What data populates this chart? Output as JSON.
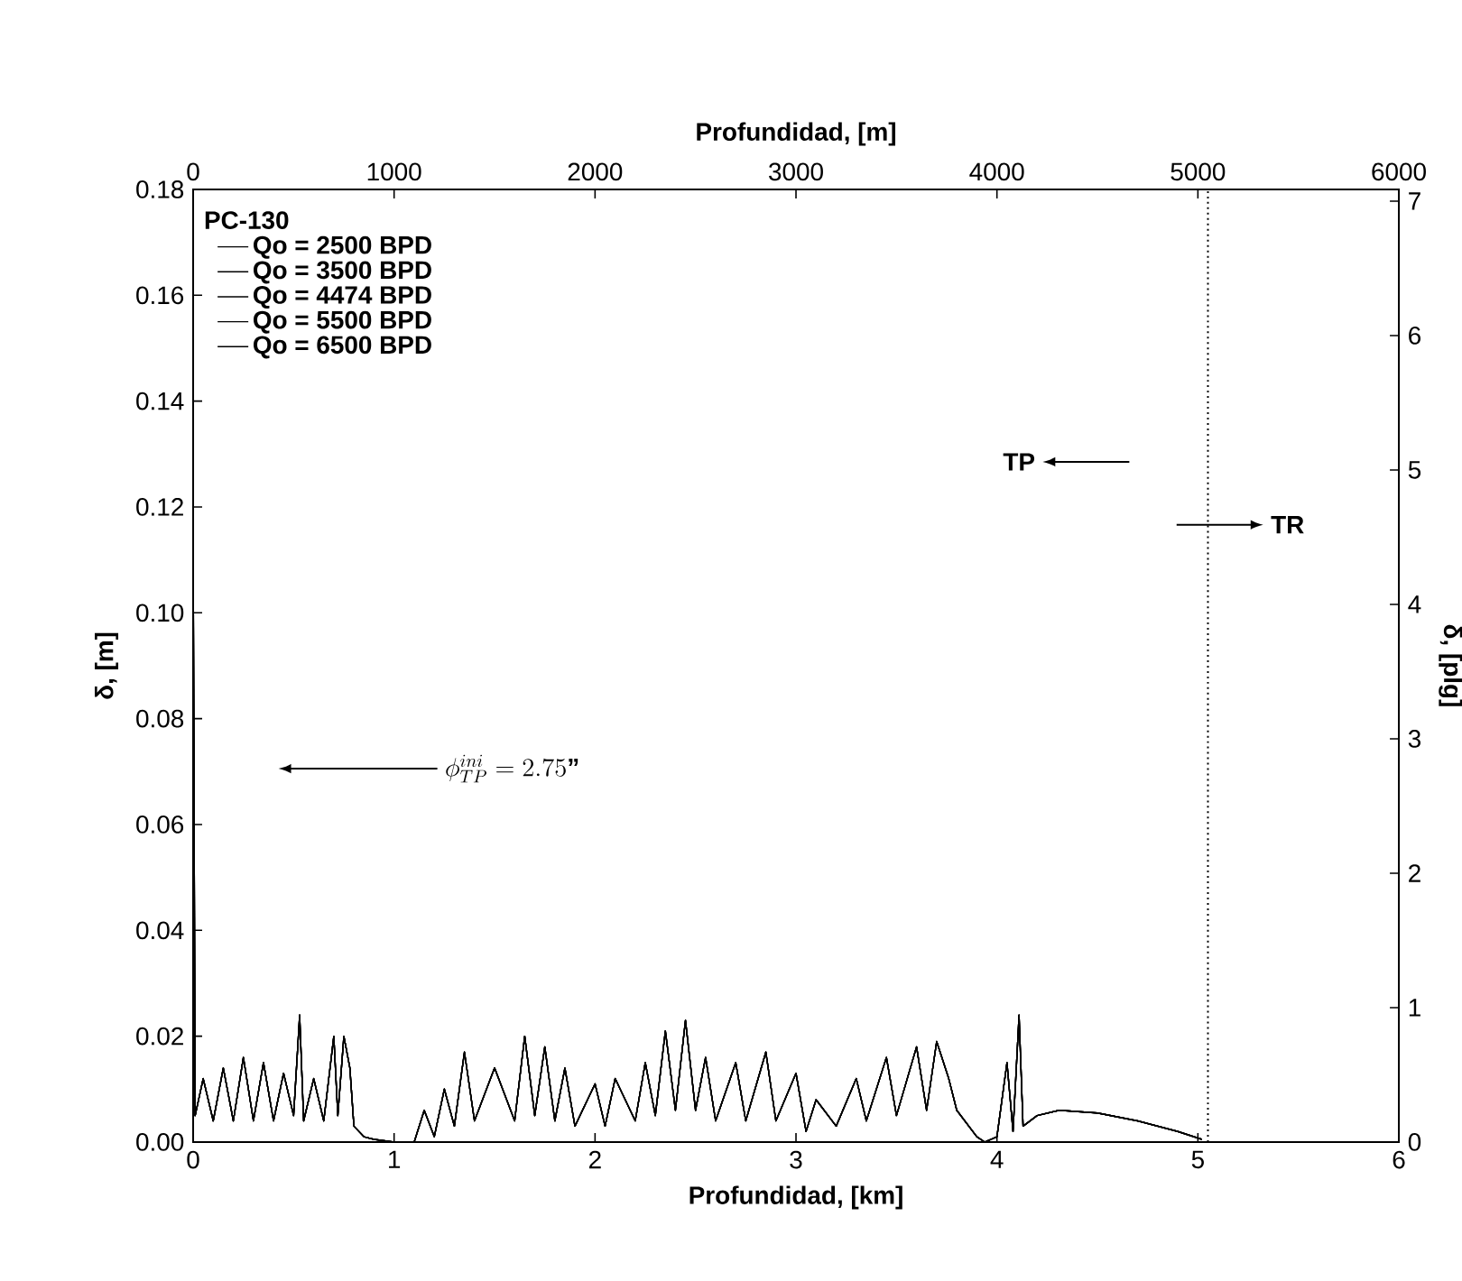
{
  "chart_data": {
    "type": "line",
    "xlabel": "Profundidad, [km]",
    "x2label": "Profundidad, [m]",
    "ylabel": "δ, [m]",
    "y2label": "δ, [plg]",
    "legend_title": "PC-130",
    "legend": "top left",
    "grid": false,
    "xlim": [
      0,
      6
    ],
    "xticks": [
      0,
      1,
      2,
      3,
      4,
      5,
      6
    ],
    "x2lim": [
      0,
      6000
    ],
    "x2ticks": [
      0,
      1000,
      2000,
      3000,
      4000,
      5000,
      6000
    ],
    "ylim": [
      0,
      0.18
    ],
    "yticks": [
      {
        "value": 0,
        "label": "0.00"
      },
      {
        "value": 0.02,
        "label": "0.02"
      },
      {
        "value": 0.04,
        "label": "0.04"
      },
      {
        "value": 0.06,
        "label": "0.06"
      },
      {
        "value": 0.08,
        "label": "0.08"
      },
      {
        "value": 0.1,
        "label": "0.10"
      },
      {
        "value": 0.12,
        "label": "0.12"
      },
      {
        "value": 0.14,
        "label": "0.14"
      },
      {
        "value": 0.16,
        "label": "0.16"
      },
      {
        "value": 0.18,
        "label": "0.18"
      }
    ],
    "y2lim": [
      0,
      7.087
    ],
    "y2ticks": [
      0,
      1,
      2,
      3,
      4,
      5,
      6,
      7
    ],
    "x": [
      0,
      0.01,
      0.05,
      0.1,
      0.15,
      0.2,
      0.25,
      0.3,
      0.35,
      0.4,
      0.45,
      0.5,
      0.53,
      0.55,
      0.6,
      0.65,
      0.7,
      0.72,
      0.75,
      0.78,
      0.8,
      0.85,
      0.9,
      1.0,
      1.1,
      1.15,
      1.2,
      1.25,
      1.3,
      1.35,
      1.4,
      1.5,
      1.6,
      1.65,
      1.7,
      1.75,
      1.8,
      1.85,
      1.9,
      2.0,
      2.05,
      2.1,
      2.2,
      2.25,
      2.3,
      2.35,
      2.4,
      2.45,
      2.5,
      2.55,
      2.6,
      2.7,
      2.75,
      2.85,
      2.9,
      3.0,
      3.05,
      3.1,
      3.2,
      3.3,
      3.35,
      3.45,
      3.5,
      3.6,
      3.65,
      3.7,
      3.76,
      3.8,
      3.9,
      3.94,
      4.0,
      4.05,
      4.08,
      4.11,
      4.13,
      4.2,
      4.31,
      4.5,
      4.7,
      4.9,
      5.02
    ],
    "series": [
      {
        "name": "Qo = 2500 BPD",
        "color": "#000000",
        "values": [
          0.115,
          0.005,
          0.012,
          0.004,
          0.014,
          0.004,
          0.016,
          0.004,
          0.015,
          0.004,
          0.013,
          0.005,
          0.024,
          0.004,
          0.012,
          0.004,
          0.02,
          0.005,
          0.02,
          0.014,
          0.003,
          0.001,
          0.0005,
          0,
          0,
          0.006,
          0.001,
          0.01,
          0.003,
          0.017,
          0.004,
          0.014,
          0.004,
          0.02,
          0.005,
          0.018,
          0.004,
          0.014,
          0.003,
          0.011,
          0.003,
          0.012,
          0.004,
          0.015,
          0.005,
          0.021,
          0.006,
          0.023,
          0.006,
          0.016,
          0.004,
          0.015,
          0.004,
          0.017,
          0.004,
          0.013,
          0.002,
          0.008,
          0.003,
          0.012,
          0.004,
          0.016,
          0.005,
          0.018,
          0.006,
          0.019,
          0.012,
          0.006,
          0.001,
          0,
          0.001,
          0.015,
          0.002,
          0.024,
          0.003,
          0.005,
          0.006,
          0.0055,
          0.004,
          0.002,
          0.0005
        ]
      },
      {
        "name": "Qo = 3500 BPD",
        "color": "#000000",
        "values": [
          0.115,
          0.005,
          0.012,
          0.004,
          0.014,
          0.004,
          0.016,
          0.004,
          0.015,
          0.004,
          0.013,
          0.005,
          0.024,
          0.004,
          0.012,
          0.004,
          0.02,
          0.005,
          0.02,
          0.014,
          0.003,
          0.001,
          0.0005,
          0,
          0,
          0.006,
          0.001,
          0.01,
          0.003,
          0.017,
          0.004,
          0.014,
          0.004,
          0.02,
          0.005,
          0.018,
          0.004,
          0.014,
          0.003,
          0.011,
          0.003,
          0.012,
          0.004,
          0.015,
          0.005,
          0.021,
          0.006,
          0.023,
          0.006,
          0.016,
          0.004,
          0.015,
          0.004,
          0.017,
          0.004,
          0.013,
          0.002,
          0.008,
          0.003,
          0.012,
          0.004,
          0.016,
          0.005,
          0.018,
          0.006,
          0.019,
          0.012,
          0.006,
          0.001,
          0,
          0.001,
          0.015,
          0.002,
          0.024,
          0.003,
          0.005,
          0.006,
          0.0055,
          0.004,
          0.002,
          0.0005
        ]
      },
      {
        "name": "Qo = 4474 BPD",
        "color": "#000000",
        "values": [
          0.115,
          0.005,
          0.012,
          0.004,
          0.014,
          0.004,
          0.016,
          0.004,
          0.015,
          0.004,
          0.013,
          0.005,
          0.024,
          0.004,
          0.012,
          0.004,
          0.02,
          0.005,
          0.02,
          0.014,
          0.003,
          0.001,
          0.0005,
          0,
          0,
          0.006,
          0.001,
          0.01,
          0.003,
          0.017,
          0.004,
          0.014,
          0.004,
          0.02,
          0.005,
          0.018,
          0.004,
          0.014,
          0.003,
          0.011,
          0.003,
          0.012,
          0.004,
          0.015,
          0.005,
          0.021,
          0.006,
          0.023,
          0.006,
          0.016,
          0.004,
          0.015,
          0.004,
          0.017,
          0.004,
          0.013,
          0.002,
          0.008,
          0.003,
          0.012,
          0.004,
          0.016,
          0.005,
          0.018,
          0.006,
          0.019,
          0.012,
          0.006,
          0.001,
          0,
          0.001,
          0.015,
          0.002,
          0.024,
          0.003,
          0.005,
          0.006,
          0.0055,
          0.004,
          0.002,
          0.0005
        ]
      },
      {
        "name": "Qo = 5500 BPD",
        "color": "#000000",
        "values": [
          0.115,
          0.005,
          0.012,
          0.004,
          0.014,
          0.004,
          0.016,
          0.004,
          0.015,
          0.004,
          0.013,
          0.005,
          0.024,
          0.004,
          0.012,
          0.004,
          0.02,
          0.005,
          0.02,
          0.014,
          0.003,
          0.001,
          0.0005,
          0,
          0,
          0.006,
          0.001,
          0.01,
          0.003,
          0.017,
          0.004,
          0.014,
          0.004,
          0.02,
          0.005,
          0.018,
          0.004,
          0.014,
          0.003,
          0.011,
          0.003,
          0.012,
          0.004,
          0.015,
          0.005,
          0.021,
          0.006,
          0.023,
          0.006,
          0.016,
          0.004,
          0.015,
          0.004,
          0.017,
          0.004,
          0.013,
          0.002,
          0.008,
          0.003,
          0.012,
          0.004,
          0.016,
          0.005,
          0.018,
          0.006,
          0.019,
          0.012,
          0.006,
          0.001,
          0,
          0.001,
          0.015,
          0.002,
          0.024,
          0.003,
          0.005,
          0.006,
          0.0055,
          0.004,
          0.002,
          0.0005
        ]
      },
      {
        "name": "Qo = 6500 BPD",
        "color": "#000000",
        "values": [
          0.115,
          0.005,
          0.012,
          0.004,
          0.014,
          0.004,
          0.016,
          0.004,
          0.015,
          0.004,
          0.013,
          0.005,
          0.024,
          0.004,
          0.012,
          0.004,
          0.02,
          0.005,
          0.02,
          0.014,
          0.003,
          0.001,
          0.0005,
          0,
          0,
          0.006,
          0.001,
          0.01,
          0.003,
          0.017,
          0.004,
          0.014,
          0.004,
          0.02,
          0.005,
          0.018,
          0.004,
          0.014,
          0.003,
          0.011,
          0.003,
          0.012,
          0.004,
          0.015,
          0.005,
          0.021,
          0.006,
          0.023,
          0.006,
          0.016,
          0.004,
          0.015,
          0.004,
          0.017,
          0.004,
          0.013,
          0.002,
          0.008,
          0.003,
          0.012,
          0.004,
          0.016,
          0.005,
          0.018,
          0.006,
          0.019,
          0.012,
          0.006,
          0.001,
          0,
          0.001,
          0.015,
          0.002,
          0.024,
          0.003,
          0.005,
          0.006,
          0.0055,
          0.004,
          0.002,
          0.0005
        ]
      }
    ],
    "ref_lines": [
      {
        "axis": "x",
        "value": 5.05,
        "line_style": "dotted"
      }
    ],
    "annotations": [
      "TP",
      "TR",
      "\\phi^{ini}_{TP} = 2.75\\mbox{\"}"
    ]
  }
}
